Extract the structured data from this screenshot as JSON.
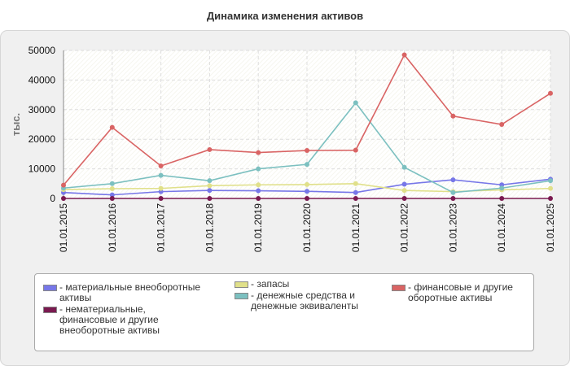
{
  "chart_data": {
    "type": "line",
    "title": "Динамика изменения активов",
    "ylabel": "тыс.",
    "xlabel": "",
    "ylim": [
      0,
      50000
    ],
    "yticks": [
      0,
      10000,
      20000,
      30000,
      40000,
      50000
    ],
    "grid": true,
    "legend_position": "bottom",
    "categories": [
      "01.01.2015",
      "01.01.2016",
      "01.01.2017",
      "01.01.2018",
      "01.01.2019",
      "01.01.2020",
      "01.01.2021",
      "01.01.2022",
      "01.01.2023",
      "01.01.2024",
      "01.01.2025"
    ],
    "series": [
      {
        "name": "- материальные внеоборотные активы",
        "color": "#7777e8",
        "values": [
          2000,
          1200,
          2300,
          2700,
          2600,
          2400,
          2000,
          4800,
          6300,
          4600,
          6500
        ]
      },
      {
        "name": "- нематериальные, финансовые и другие внеоборотные активы",
        "color": "#7a1a50",
        "values": [
          0,
          0,
          0,
          0,
          0,
          0,
          0,
          0,
          0,
          0,
          0
        ]
      },
      {
        "name": "- запасы",
        "color": "#e0e08a",
        "values": [
          3000,
          3300,
          3400,
          4300,
          4600,
          4700,
          5000,
          2700,
          2300,
          2900,
          3400
        ]
      },
      {
        "name": "- денежные средства и денежные эквиваленты",
        "color": "#7cc0c0",
        "values": [
          3500,
          5000,
          7800,
          6000,
          10000,
          11500,
          32300,
          10500,
          2000,
          3500,
          6000
        ]
      },
      {
        "name": "- финансовые и другие оборотные активы",
        "color": "#d96464",
        "values": [
          4500,
          24000,
          11000,
          16500,
          15500,
          16200,
          16300,
          48500,
          27800,
          25000,
          35500
        ]
      }
    ]
  }
}
